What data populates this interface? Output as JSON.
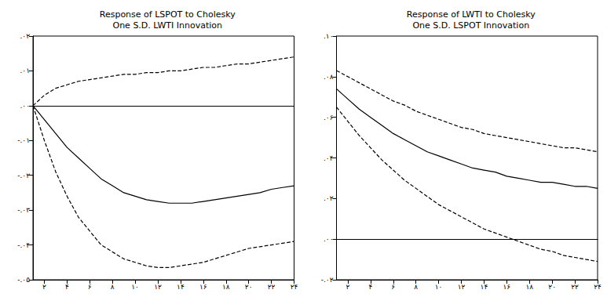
{
  "chart_data": [
    {
      "type": "line",
      "title": "Response of LSPOT to Cholesky\nOne S.D. LWTI Innovation",
      "x": [
        1,
        2,
        3,
        4,
        5,
        6,
        7,
        8,
        9,
        10,
        11,
        12,
        13,
        14,
        15,
        16,
        17,
        18,
        19,
        20,
        21,
        22,
        23,
        24
      ],
      "xlim": [
        1,
        24
      ],
      "xticks": [
        {
          "value": 2,
          "label": "۲"
        },
        {
          "value": 4,
          "label": "۴"
        },
        {
          "value": 6,
          "label": "۶"
        },
        {
          "value": 8,
          "label": "۸"
        },
        {
          "value": 10,
          "label": "۱۰"
        },
        {
          "value": 12,
          "label": "۱۲"
        },
        {
          "value": 14,
          "label": "۱۴"
        },
        {
          "value": 16,
          "label": "۱۶"
        },
        {
          "value": 18,
          "label": "۱۸"
        },
        {
          "value": 20,
          "label": "۲۰"
        },
        {
          "value": 22,
          "label": "۲۲"
        },
        {
          "value": 24,
          "label": "۲۴"
        }
      ],
      "ylim": [
        -0.05,
        0.02
      ],
      "yticks": [
        {
          "value": -0.05,
          "label": "-.۰۵"
        },
        {
          "value": -0.04,
          "label": "-.۰۴"
        },
        {
          "value": -0.03,
          "label": "-.۰۳"
        },
        {
          "value": -0.02,
          "label": "-.۰۲"
        },
        {
          "value": -0.01,
          "label": "-.۰۱"
        },
        {
          "value": 0,
          "label": ".۰۰"
        },
        {
          "value": 0.01,
          "label": ".۰۱"
        },
        {
          "value": 0.02,
          "label": ".۰۲"
        }
      ],
      "grid": false,
      "series": [
        {
          "color": "#000000",
          "line_style": "dashed",
          "values": [
            0,
            0.003,
            0.005,
            0.006,
            0.007,
            0.0075,
            0.008,
            0.0085,
            0.009,
            0.009,
            0.0095,
            0.0095,
            0.01,
            0.01,
            0.0105,
            0.011,
            0.011,
            0.0115,
            0.012,
            0.012,
            0.0125,
            0.013,
            0.0135,
            0.014
          ]
        },
        {
          "color": "#000000",
          "line_style": "solid",
          "values": [
            0,
            -0.004,
            -0.008,
            -0.012,
            -0.015,
            -0.018,
            -0.021,
            -0.023,
            -0.025,
            -0.026,
            -0.027,
            -0.0275,
            -0.028,
            -0.028,
            -0.028,
            -0.0275,
            -0.027,
            -0.0265,
            -0.026,
            -0.0255,
            -0.025,
            -0.024,
            -0.0235,
            -0.023
          ]
        },
        {
          "color": "#000000",
          "line_style": "dashed",
          "values": [
            0,
            -0.01,
            -0.019,
            -0.026,
            -0.032,
            -0.036,
            -0.04,
            -0.042,
            -0.044,
            -0.045,
            -0.046,
            -0.0465,
            -0.0465,
            -0.046,
            -0.0455,
            -0.045,
            -0.044,
            -0.043,
            -0.042,
            -0.041,
            -0.0405,
            -0.04,
            -0.0395,
            -0.039
          ]
        }
      ]
    },
    {
      "type": "line",
      "title": "Response of LWTI to Cholesky\nOne S.D. LSPOT Innovation",
      "x": [
        1,
        2,
        3,
        4,
        5,
        6,
        7,
        8,
        9,
        10,
        11,
        12,
        13,
        14,
        15,
        16,
        17,
        18,
        19,
        20,
        21,
        22,
        23,
        24
      ],
      "xlim": [
        1,
        24
      ],
      "xticks": [
        {
          "value": 2,
          "label": "۲"
        },
        {
          "value": 4,
          "label": "۴"
        },
        {
          "value": 6,
          "label": "۶"
        },
        {
          "value": 8,
          "label": "۸"
        },
        {
          "value": 10,
          "label": "۱۰"
        },
        {
          "value": 12,
          "label": "۱۲"
        },
        {
          "value": 14,
          "label": "۱۴"
        },
        {
          "value": 16,
          "label": "۱۶"
        },
        {
          "value": 18,
          "label": "۱۸"
        },
        {
          "value": 20,
          "label": "۲۰"
        },
        {
          "value": 22,
          "label": "۲۲"
        },
        {
          "value": 24,
          "label": "۲۴"
        }
      ],
      "ylim": [
        -0.02,
        0.1
      ],
      "yticks": [
        {
          "value": -0.02,
          "label": "-.۰۲"
        },
        {
          "value": 0,
          "label": ".۰۰"
        },
        {
          "value": 0.02,
          "label": ".۰۲"
        },
        {
          "value": 0.04,
          "label": ".۰۴"
        },
        {
          "value": 0.06,
          "label": ".۰۶"
        },
        {
          "value": 0.08,
          "label": ".۰۸"
        },
        {
          "value": 0.1,
          "label": ".۱۰"
        }
      ],
      "grid": false,
      "series": [
        {
          "color": "#000000",
          "line_style": "dashed",
          "values": [
            0.083,
            0.08,
            0.077,
            0.074,
            0.071,
            0.068,
            0.066,
            0.063,
            0.061,
            0.059,
            0.057,
            0.055,
            0.054,
            0.052,
            0.051,
            0.05,
            0.049,
            0.048,
            0.047,
            0.046,
            0.045,
            0.045,
            0.044,
            0.043
          ]
        },
        {
          "color": "#000000",
          "line_style": "solid",
          "values": [
            0.074,
            0.069,
            0.064,
            0.06,
            0.056,
            0.052,
            0.049,
            0.046,
            0.043,
            0.041,
            0.039,
            0.037,
            0.035,
            0.034,
            0.033,
            0.031,
            0.03,
            0.029,
            0.028,
            0.028,
            0.027,
            0.026,
            0.026,
            0.025
          ]
        },
        {
          "color": "#000000",
          "line_style": "dashed",
          "values": [
            0.065,
            0.058,
            0.051,
            0.045,
            0.039,
            0.034,
            0.029,
            0.025,
            0.021,
            0.017,
            0.014,
            0.011,
            0.008,
            0.005,
            0.003,
            0.001,
            -0.001,
            -0.003,
            -0.005,
            -0.006,
            -0.008,
            -0.009,
            -0.01,
            -0.011
          ]
        }
      ]
    }
  ]
}
